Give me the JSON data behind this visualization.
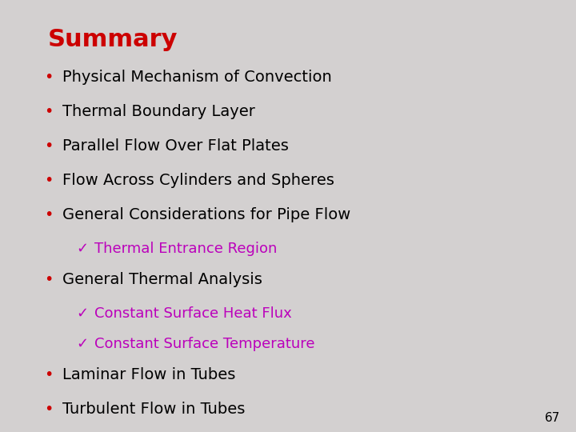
{
  "title": "Summary",
  "title_color": "#cc0000",
  "title_fontsize": 22,
  "title_bold": true,
  "background_color": "#d3d0d0",
  "bullet_color": "#cc0000",
  "text_color": "#000000",
  "bullet_fontsize": 14,
  "sub_bullet_fontsize": 13,
  "page_number": "67",
  "page_number_fontsize": 11,
  "checkmark_color": "#bb00bb",
  "bullet_items": [
    {
      "type": "bullet",
      "text": "Physical Mechanism of Convection",
      "color": "#000000"
    },
    {
      "type": "bullet",
      "text": "Thermal Boundary Layer",
      "color": "#000000"
    },
    {
      "type": "bullet",
      "text": "Parallel Flow Over Flat Plates",
      "color": "#000000"
    },
    {
      "type": "bullet",
      "text": "Flow Across Cylinders and Spheres",
      "color": "#000000"
    },
    {
      "type": "bullet",
      "text": "General Considerations for Pipe Flow",
      "color": "#000000"
    },
    {
      "type": "checkmark",
      "text": "Thermal Entrance Region",
      "color": "#bb00bb"
    },
    {
      "type": "bullet",
      "text": "General Thermal Analysis",
      "color": "#000000"
    },
    {
      "type": "checkmark",
      "text": "Constant Surface Heat Flux",
      "color": "#bb00bb"
    },
    {
      "type": "checkmark",
      "text": "Constant Surface Temperature",
      "color": "#bb00bb"
    },
    {
      "type": "bullet",
      "text": "Laminar Flow in Tubes",
      "color": "#000000"
    },
    {
      "type": "bullet",
      "text": "Turbulent Flow in Tubes",
      "color": "#000000"
    }
  ]
}
